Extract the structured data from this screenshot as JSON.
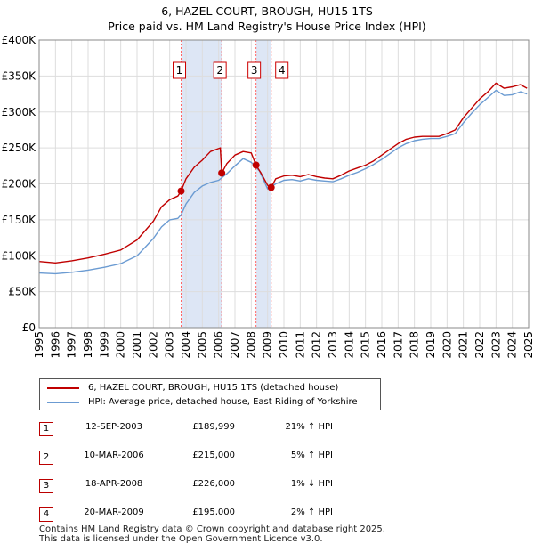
{
  "title_line1": "6, HAZEL COURT, BROUGH, HU15 1TS",
  "title_line2": "Price paid vs. HM Land Registry's House Price Index (HPI)",
  "colors": {
    "property": "#c00000",
    "hpi": "#6b9bd2",
    "shade": "#dde6f5",
    "marker_line": "#ff6666"
  },
  "legend": {
    "property_label": "6, HAZEL COURT, BROUGH, HU15 1TS (detached house)",
    "hpi_label": "HPI: Average price, detached house, East Riding of Yorkshire"
  },
  "sales": [
    {
      "num": "1",
      "date": "12-SEP-2003",
      "price": "£189,999",
      "hpi": "21% ↑ HPI"
    },
    {
      "num": "2",
      "date": "10-MAR-2006",
      "price": "£215,000",
      "hpi": "5% ↑ HPI"
    },
    {
      "num": "3",
      "date": "18-APR-2008",
      "price": "£226,000",
      "hpi": "1% ↓ HPI"
    },
    {
      "num": "4",
      "date": "20-MAR-2009",
      "price": "£195,000",
      "hpi": "2% ↑ HPI"
    }
  ],
  "footer_line1": "Contains HM Land Registry data © Crown copyright and database right 2025.",
  "footer_line2": "This data is licensed under the Open Government Licence v3.0.",
  "chart_data": {
    "type": "line",
    "title": "6, HAZEL COURT, BROUGH, HU15 1TS — Price paid vs. HM Land Registry's House Price Index (HPI)",
    "xlabel": "",
    "ylabel": "",
    "xlim": [
      1995,
      2025
    ],
    "ylim": [
      0,
      400000
    ],
    "y_ticks": [
      {
        "value": 0,
        "label": "£0"
      },
      {
        "value": 50000,
        "label": "£50K"
      },
      {
        "value": 100000,
        "label": "£100K"
      },
      {
        "value": 150000,
        "label": "£150K"
      },
      {
        "value": 200000,
        "label": "£200K"
      },
      {
        "value": 250000,
        "label": "£250K"
      },
      {
        "value": 300000,
        "label": "£300K"
      },
      {
        "value": 350000,
        "label": "£350K"
      },
      {
        "value": 400000,
        "label": "£400K"
      }
    ],
    "x_ticks": [
      "1995",
      "1996",
      "1997",
      "1998",
      "1999",
      "2000",
      "2001",
      "2002",
      "2003",
      "2004",
      "2005",
      "2006",
      "2007",
      "2008",
      "2009",
      "2010",
      "2011",
      "2012",
      "2013",
      "2014",
      "2015",
      "2016",
      "2017",
      "2018",
      "2019",
      "2020",
      "2021",
      "2022",
      "2023",
      "2024",
      "2025"
    ],
    "shaded_periods": [
      [
        2003.7,
        2006.19
      ],
      [
        2008.29,
        2009.22
      ]
    ],
    "sale_markers": [
      {
        "label": "1",
        "x": 2003.7,
        "y": 189999
      },
      {
        "label": "2",
        "x": 2006.19,
        "y": 215000
      },
      {
        "label": "3",
        "x": 2008.29,
        "y": 226000
      },
      {
        "label": "4",
        "x": 2009.22,
        "y": 195000
      }
    ],
    "series": [
      {
        "name": "6, HAZEL COURT, BROUGH, HU15 1TS (detached house)",
        "x": [
          1995,
          1996,
          1997,
          1998,
          1999,
          2000,
          2001,
          2001.5,
          2002,
          2002.5,
          2003,
          2003.5,
          2003.7,
          2004,
          2004.5,
          2005,
          2005.5,
          2006.1,
          2006.19,
          2006.5,
          2007,
          2007.5,
          2008,
          2008.29,
          2008.6,
          2009,
          2009.22,
          2009.5,
          2010,
          2010.5,
          2011,
          2011.5,
          2012,
          2012.5,
          2013,
          2013.5,
          2014,
          2014.5,
          2015,
          2015.5,
          2016,
          2016.5,
          2017,
          2017.5,
          2018,
          2018.5,
          2019,
          2019.5,
          2020,
          2020.5,
          2021,
          2021.5,
          2022,
          2022.5,
          2023,
          2023.5,
          2024,
          2024.5,
          2024.9
        ],
        "values": [
          92000,
          90000,
          93000,
          97000,
          102000,
          108000,
          122000,
          135000,
          148000,
          168000,
          178000,
          183000,
          189999,
          207000,
          223000,
          233000,
          245000,
          250000,
          215000,
          228000,
          240000,
          245000,
          243000,
          226000,
          215000,
          198000,
          195000,
          207000,
          211000,
          212000,
          210000,
          213000,
          210000,
          208000,
          207000,
          212000,
          218000,
          222000,
          226000,
          232000,
          240000,
          248000,
          256000,
          262000,
          265000,
          266000,
          266000,
          266000,
          270000,
          275000,
          292000,
          305000,
          318000,
          328000,
          340000,
          333000,
          335000,
          338000,
          333000
        ]
      },
      {
        "name": "HPI: Average price, detached house, East Riding of Yorkshire",
        "x": [
          1995,
          1996,
          1997,
          1998,
          1999,
          2000,
          2001,
          2001.5,
          2002,
          2002.5,
          2003,
          2003.5,
          2003.7,
          2004,
          2004.5,
          2005,
          2005.5,
          2006,
          2006.5,
          2007,
          2007.5,
          2008,
          2008.5,
          2009,
          2009.5,
          2010,
          2010.5,
          2011,
          2011.5,
          2012,
          2012.5,
          2013,
          2013.5,
          2014,
          2014.5,
          2015,
          2015.5,
          2016,
          2016.5,
          2017,
          2017.5,
          2018,
          2018.5,
          2019,
          2019.5,
          2020,
          2020.5,
          2021,
          2021.5,
          2022,
          2022.5,
          2023,
          2023.5,
          2024,
          2024.5,
          2024.9
        ],
        "values": [
          76000,
          75000,
          77000,
          80000,
          84000,
          89000,
          100000,
          112000,
          124000,
          140000,
          150000,
          152000,
          157000,
          172000,
          188000,
          197000,
          202000,
          205000,
          214000,
          225000,
          235000,
          230000,
          218000,
          193000,
          200000,
          205000,
          206000,
          204000,
          207000,
          205000,
          204000,
          203000,
          207000,
          212000,
          216000,
          221000,
          227000,
          234000,
          242000,
          250000,
          256000,
          260000,
          262000,
          263000,
          263000,
          266000,
          270000,
          285000,
          298000,
          310000,
          320000,
          330000,
          323000,
          324000,
          328000,
          325000
        ]
      }
    ]
  }
}
